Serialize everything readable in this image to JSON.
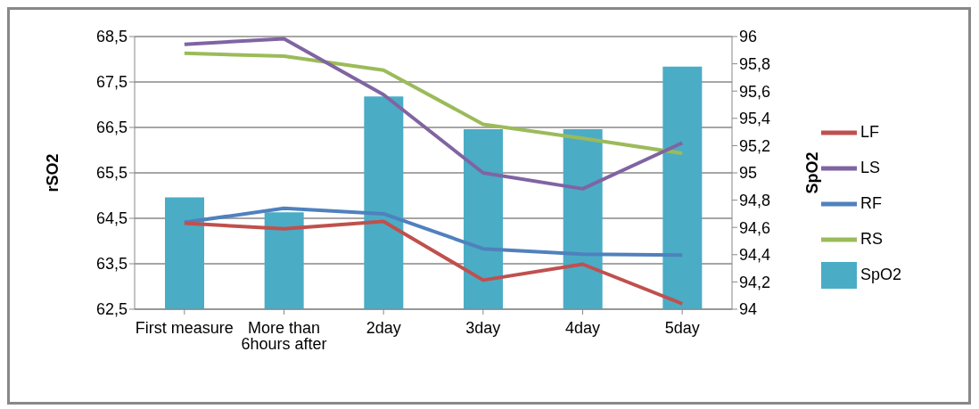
{
  "chart_data": {
    "type": "line",
    "categories": [
      "First measure",
      "More than 6hours after",
      "2day",
      "3day",
      "4day",
      "5day"
    ],
    "ylabel": "rSO2",
    "y2label": "SpO2",
    "ylim": [
      62.5,
      68.5
    ],
    "yticks": [
      {
        "value": 62.5,
        "label": "62,5"
      },
      {
        "value": 63.5,
        "label": "63,5"
      },
      {
        "value": 64.5,
        "label": "64,5"
      },
      {
        "value": 65.5,
        "label": "65,5"
      },
      {
        "value": 66.5,
        "label": "66,5"
      },
      {
        "value": 67.5,
        "label": "67,5"
      },
      {
        "value": 68.5,
        "label": "68,5"
      }
    ],
    "y2lim": [
      94,
      96
    ],
    "y2ticks": [
      94,
      {
        "value": 94.2,
        "label": "94,2"
      },
      {
        "value": 94.4,
        "label": "94,4"
      },
      {
        "value": 94.6,
        "label": "94,6"
      },
      {
        "value": 94.8,
        "label": "94,8"
      },
      95,
      {
        "value": 95.2,
        "label": "95,2"
      },
      {
        "value": 95.4,
        "label": "95,4"
      },
      {
        "value": 95.6,
        "label": "95,6"
      },
      {
        "value": 95.8,
        "label": "95,8"
      },
      96
    ],
    "grid": "y",
    "legend": "right",
    "marker": "none",
    "series": [
      {
        "name": "SpO2",
        "type": "bar",
        "axis": "y2",
        "color": "#4bacc6",
        "values": [
          94.82,
          94.71,
          95.56,
          95.32,
          95.32,
          95.78
        ]
      },
      {
        "name": "RF",
        "color": "#4f81bd",
        "values": [
          64.41,
          64.72,
          64.6,
          63.83,
          63.71,
          63.69
        ]
      },
      {
        "name": "LF",
        "color": "#c0504d",
        "values": [
          64.39,
          64.27,
          64.43,
          63.14,
          63.49,
          62.62
        ]
      },
      {
        "name": "RS",
        "color": "#9bbb59",
        "values": [
          68.13,
          68.07,
          67.76,
          66.57,
          66.26,
          65.93
        ]
      },
      {
        "name": "LS",
        "color": "#8064a2",
        "values": [
          68.33,
          68.45,
          67.22,
          65.5,
          65.15,
          66.16
        ]
      }
    ]
  }
}
